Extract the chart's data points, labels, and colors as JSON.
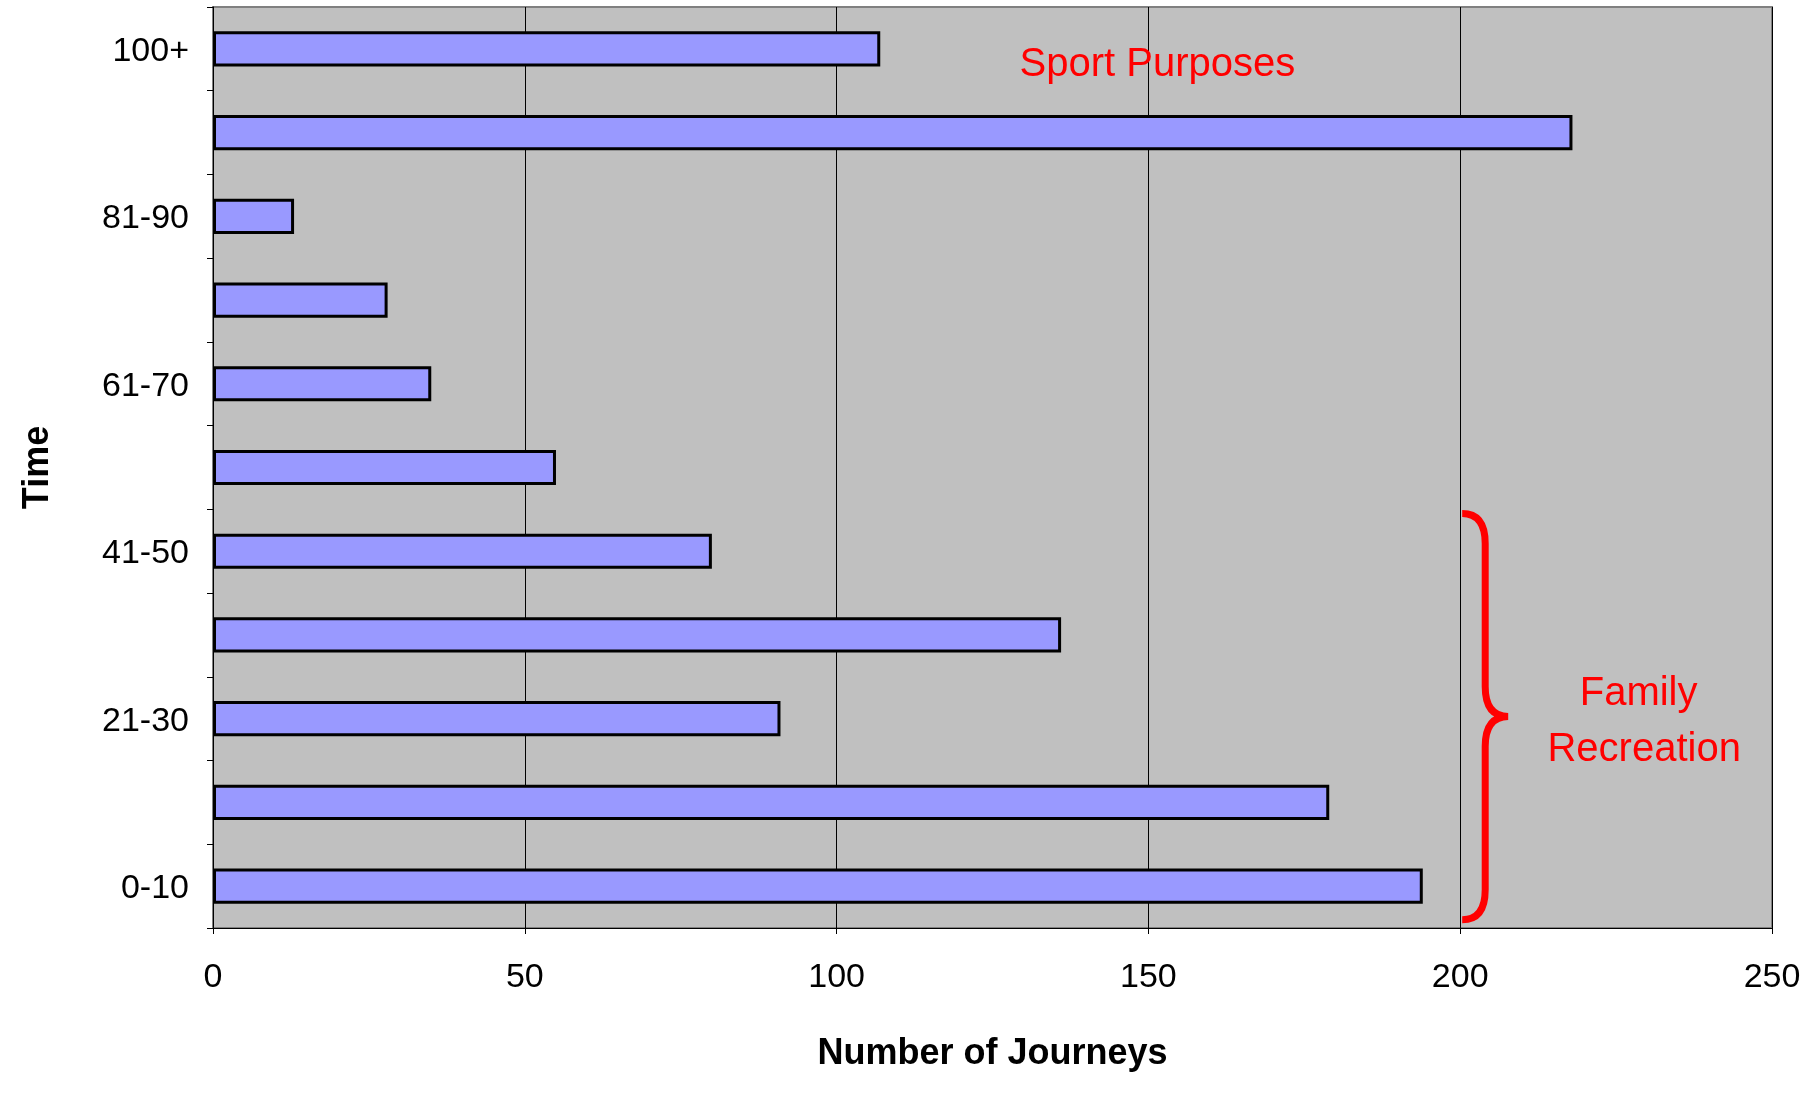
{
  "chart_data": {
    "type": "bar",
    "orientation": "horizontal",
    "xlabel": "Number of Journeys",
    "ylabel": "Time",
    "categories": [
      "100+",
      null,
      "81-90",
      null,
      "61-70",
      null,
      "41-50",
      null,
      "21-30",
      null,
      "0-10"
    ],
    "values": [
      107,
      218,
      13,
      28,
      35,
      55,
      80,
      136,
      91,
      179,
      194
    ],
    "color": "#9999ff",
    "xlim": [
      0,
      250
    ],
    "xticks": [
      0,
      50,
      100,
      150,
      200,
      250
    ],
    "grid": "x",
    "annotations": [
      "Sport Purposes",
      "Family Recreation"
    ]
  }
}
